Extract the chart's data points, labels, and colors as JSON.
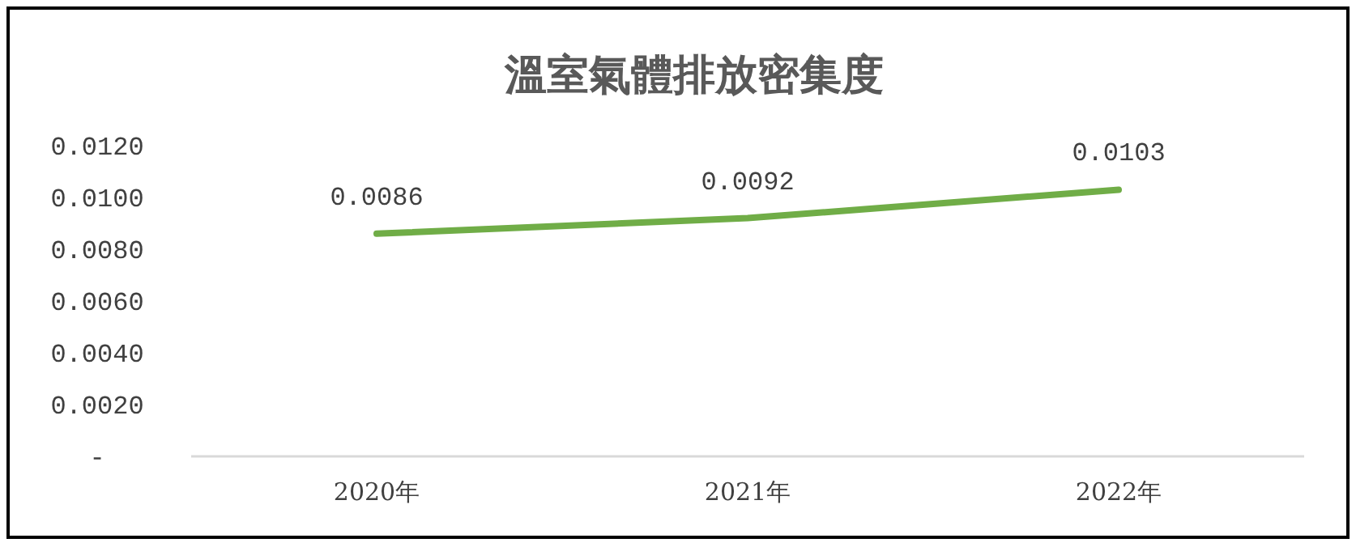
{
  "chart_data": {
    "type": "line",
    "title": "溫室氣體排放密集度",
    "categories": [
      "2020年",
      "2021年",
      "2022年"
    ],
    "series": [
      {
        "color": "#70ad47",
        "values": [
          0.0086,
          0.0092,
          0.0103
        ]
      }
    ],
    "ylim": [
      0,
      0.012
    ],
    "yticks": [
      {
        "value": 0,
        "label": "-"
      },
      {
        "value": 0.002,
        "label": "0.0020"
      },
      {
        "value": 0.004,
        "label": "0.0040"
      },
      {
        "value": 0.006,
        "label": "0.0060"
      },
      {
        "value": 0.008,
        "label": "0.0080"
      },
      {
        "value": 0.01,
        "label": "0.0100"
      },
      {
        "value": 0.012,
        "label": "0.0120"
      }
    ],
    "data_labels": true,
    "grid": false,
    "marker": "none",
    "line_style": "solid"
  }
}
